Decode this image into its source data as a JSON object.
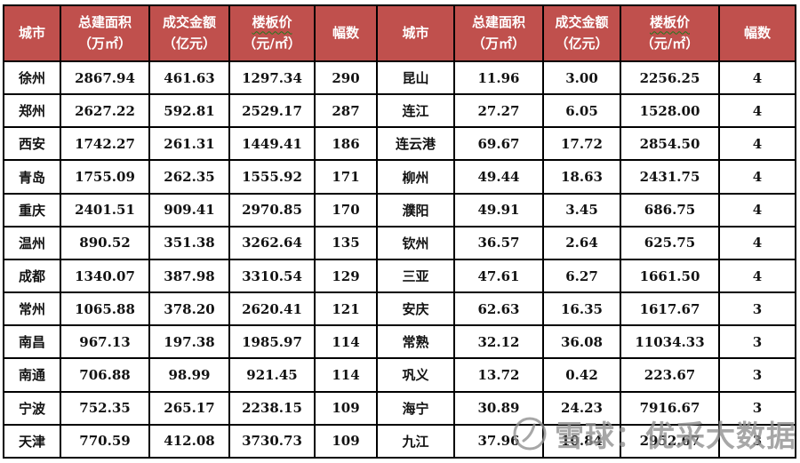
{
  "colors": {
    "header_bg": "#C0504D",
    "header_text": "#FFFFFF",
    "grid_border": "#000000",
    "cell_text": "#121212",
    "wavy_underline": "#1F7A1F",
    "watermark_gray": "#919191"
  },
  "table": {
    "columns": [
      {
        "key": "city-left",
        "name": "城市",
        "unit": "",
        "wavy": false
      },
      {
        "key": "area-left",
        "name": "总建面积",
        "unit": "（万㎡）",
        "wavy": false
      },
      {
        "key": "amount-left",
        "name": "成交金额",
        "unit": "（亿元）",
        "wavy": false
      },
      {
        "key": "price-left",
        "name": "楼板价",
        "unit": "（元/㎡）",
        "wavy": true
      },
      {
        "key": "plots-left",
        "name": "幅数",
        "unit": "",
        "wavy": false
      },
      {
        "key": "city-right",
        "name": "城市",
        "unit": "",
        "wavy": false
      },
      {
        "key": "area-right",
        "name": "总建面积",
        "unit": "（万㎡）",
        "wavy": false
      },
      {
        "key": "amount-right",
        "name": "成交金额",
        "unit": "（亿元）",
        "wavy": false
      },
      {
        "key": "price-right",
        "name": "楼板价",
        "unit": "（元/㎡）",
        "wavy": true
      },
      {
        "key": "plots-right",
        "name": "幅数",
        "unit": "",
        "wavy": false
      }
    ],
    "rows": [
      [
        "徐州",
        "2867.94",
        "461.63",
        "1297.34",
        "290",
        "昆山",
        "11.96",
        "3.00",
        "2256.25",
        "4"
      ],
      [
        "郑州",
        "2627.22",
        "592.81",
        "2529.17",
        "287",
        "连江",
        "27.27",
        "6.05",
        "1528.00",
        "4"
      ],
      [
        "西安",
        "1742.27",
        "261.31",
        "1449.41",
        "186",
        "连云港",
        "69.67",
        "17.72",
        "2854.50",
        "4"
      ],
      [
        "青岛",
        "1755.09",
        "262.35",
        "1555.92",
        "171",
        "柳州",
        "49.44",
        "18.63",
        "2431.75",
        "4"
      ],
      [
        "重庆",
        "2401.51",
        "909.41",
        "2970.85",
        "170",
        "濮阳",
        "49.91",
        "3.45",
        "686.75",
        "4"
      ],
      [
        "温州",
        "890.52",
        "351.38",
        "3262.64",
        "135",
        "钦州",
        "36.57",
        "2.64",
        "625.75",
        "4"
      ],
      [
        "成都",
        "1340.07",
        "387.98",
        "3310.54",
        "129",
        "三亚",
        "47.61",
        "6.27",
        "1661.50",
        "4"
      ],
      [
        "常州",
        "1065.88",
        "378.20",
        "2620.41",
        "121",
        "安庆",
        "62.63",
        "16.35",
        "1617.67",
        "3"
      ],
      [
        "南昌",
        "967.13",
        "197.38",
        "1985.97",
        "114",
        "常熟",
        "32.12",
        "36.08",
        "11034.33",
        "3"
      ],
      [
        "南通",
        "706.88",
        "98.99",
        "921.45",
        "114",
        "巩义",
        "13.72",
        "0.42",
        "223.67",
        "3"
      ],
      [
        "宁波",
        "752.35",
        "265.17",
        "2238.15",
        "109",
        "海宁",
        "30.89",
        "24.23",
        "7916.67",
        "3"
      ],
      [
        "天津",
        "770.59",
        "412.08",
        "3730.73",
        "109",
        "九江",
        "37.96",
        "10.84",
        "2952.67",
        "3"
      ]
    ]
  },
  "watermark": {
    "text": "雪球：优采大数据"
  }
}
